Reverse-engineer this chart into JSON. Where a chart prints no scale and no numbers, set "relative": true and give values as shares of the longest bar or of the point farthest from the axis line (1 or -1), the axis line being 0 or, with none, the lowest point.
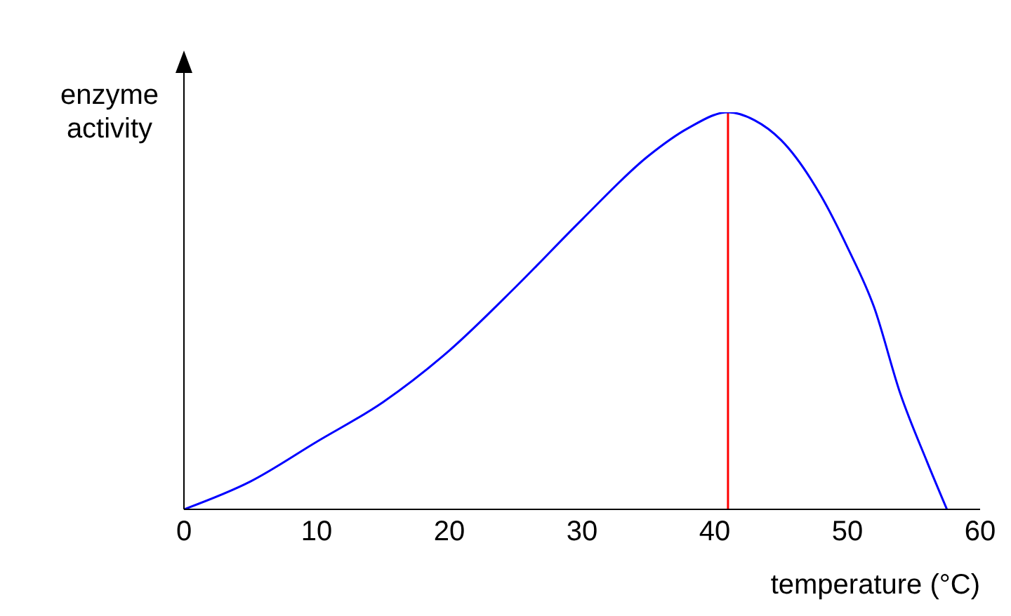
{
  "chart_data": {
    "type": "line",
    "relative": true,
    "xlabel": "temperature (°C)",
    "ylabel": "enzyme activity",
    "xlim": [
      0,
      60
    ],
    "xticks": [
      0,
      10,
      20,
      30,
      40,
      50,
      60
    ],
    "series": [
      {
        "color": "#0000ff",
        "x": [
          0,
          5,
          10,
          15,
          20,
          25,
          30,
          35,
          38,
          41,
          43,
          45,
          48,
          50,
          52,
          54,
          56,
          57.5
        ],
        "values": [
          0,
          0.07,
          0.17,
          0.27,
          0.4,
          0.56,
          0.73,
          0.89,
          0.96,
          1,
          0.98,
          0.93,
          0.79,
          0.66,
          0.51,
          0.29,
          0.12,
          0
        ]
      }
    ],
    "ref_lines": [
      {
        "axis": "x",
        "value": 41,
        "color": "#ff0000"
      }
    ],
    "grid": false
  }
}
